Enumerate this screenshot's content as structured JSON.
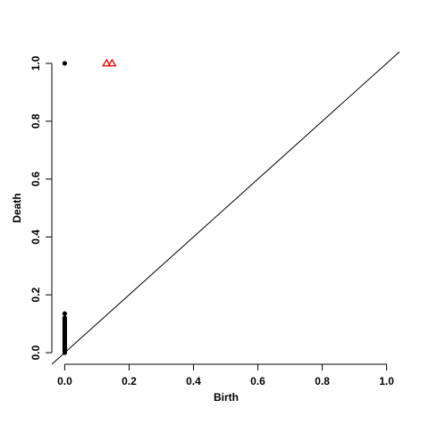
{
  "chart_data": {
    "type": "scatter",
    "x_label": "Birth",
    "y_label": "Death",
    "xlim": [
      -0.04,
      1.04
    ],
    "ylim": [
      -0.04,
      1.04
    ],
    "xticks": [
      {
        "value": 0,
        "label": "0.0"
      },
      {
        "value": 0.2,
        "label": "0.2"
      },
      {
        "value": 0.4,
        "label": "0.4"
      },
      {
        "value": 0.6,
        "label": "0.6"
      },
      {
        "value": 0.8,
        "label": "0.8"
      },
      {
        "value": 1,
        "label": "1.0"
      }
    ],
    "yticks": [
      {
        "value": 0,
        "label": "0.0"
      },
      {
        "value": 0.2,
        "label": "0.2"
      },
      {
        "value": 0.4,
        "label": "0.4"
      },
      {
        "value": 0.6,
        "label": "0.6"
      },
      {
        "value": 0.8,
        "label": "0.8"
      },
      {
        "value": 1,
        "label": "1.0"
      }
    ],
    "diagonal": true,
    "series": [
      {
        "color": "#000000",
        "marker": "circle",
        "x": [
          0,
          0,
          0,
          0,
          0,
          0,
          0,
          0,
          0,
          0,
          0,
          0,
          0,
          0,
          0,
          0,
          0,
          0,
          0,
          0,
          0,
          0,
          0,
          0,
          0,
          0,
          0
        ],
        "y": [
          1.0,
          0.135,
          0.12,
          0.115,
          0.11,
          0.105,
          0.1,
          0.095,
          0.09,
          0.085,
          0.08,
          0.075,
          0.07,
          0.065,
          0.06,
          0.055,
          0.05,
          0.045,
          0.04,
          0.035,
          0.03,
          0.025,
          0.02,
          0.015,
          0.01,
          0.005,
          0.0
        ]
      },
      {
        "color": "#dd0000",
        "marker": "triangle",
        "x": [
          0.13,
          0.147
        ],
        "y": [
          1.0,
          1.0
        ]
      }
    ]
  }
}
